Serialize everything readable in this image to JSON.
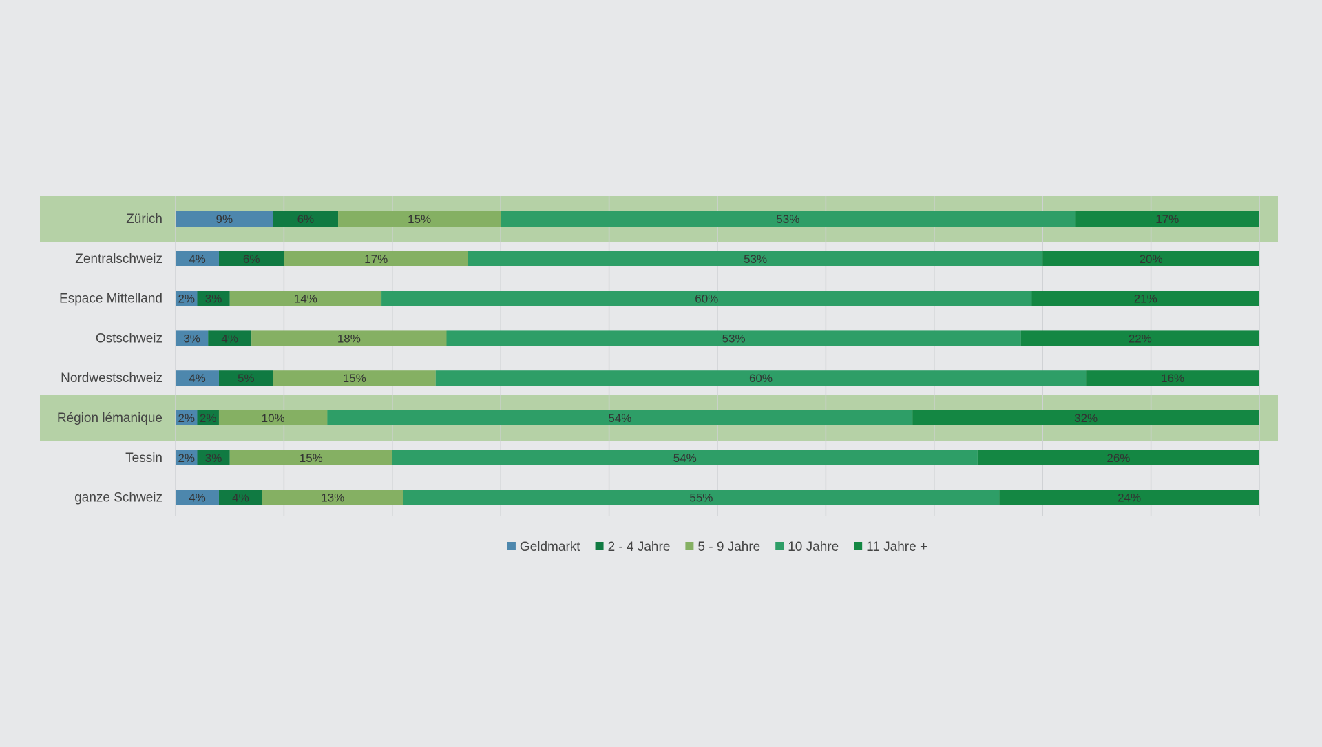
{
  "chart_data": {
    "type": "bar",
    "orientation": "horizontal",
    "stacked": true,
    "normalized": true,
    "grid": true,
    "legend_position": "bottom",
    "xlim": [
      0,
      100
    ],
    "categories": [
      "Zürich",
      "Zentralschweiz",
      "Espace Mittelland",
      "Ostschweiz",
      "Nordwestschweiz",
      "Région lémanique",
      "Tessin",
      "ganze Schweiz"
    ],
    "highlighted_categories": [
      "Zürich",
      "Région lémanique"
    ],
    "series": [
      {
        "name": "Geldmarkt",
        "color": "#4d87ad",
        "values": [
          9,
          4,
          2,
          3,
          4,
          2,
          2,
          4
        ],
        "labels": [
          "9%",
          "4%",
          "2%",
          "3%",
          "4%",
          "2%",
          "2%",
          "4%"
        ]
      },
      {
        "name": "2 - 4 Jahre",
        "color": "#107a42",
        "values": [
          6,
          6,
          3,
          4,
          5,
          2,
          3,
          4
        ],
        "labels": [
          "6%",
          "6%",
          "3%",
          "4%",
          "5%",
          "2%",
          "3%",
          "4%"
        ]
      },
      {
        "name": "5 - 9 Jahre",
        "color": "#85b063",
        "values": [
          15,
          17,
          14,
          18,
          15,
          10,
          15,
          13
        ],
        "labels": [
          "15%",
          "17%",
          "14%",
          "18%",
          "15%",
          "10%",
          "15%",
          "13%"
        ]
      },
      {
        "name": "10 Jahre",
        "color": "#2e9e67",
        "values": [
          53,
          53,
          60,
          53,
          60,
          54,
          54,
          55
        ],
        "labels": [
          "53%",
          "53%",
          "60%",
          "53%",
          "60%",
          "54%",
          "54%",
          "55%"
        ]
      },
      {
        "name": "11 Jahre +",
        "color": "#148743",
        "values": [
          17,
          20,
          21,
          22,
          16,
          32,
          26,
          24
        ],
        "labels": [
          "17%",
          "20%",
          "21%",
          "22%",
          "16%",
          "32%",
          "26%",
          "24%"
        ]
      }
    ],
    "colors": {
      "background": "#e7e8ea",
      "highlight_band": "#b5d1a6",
      "grid": "#cfd1d4"
    }
  }
}
